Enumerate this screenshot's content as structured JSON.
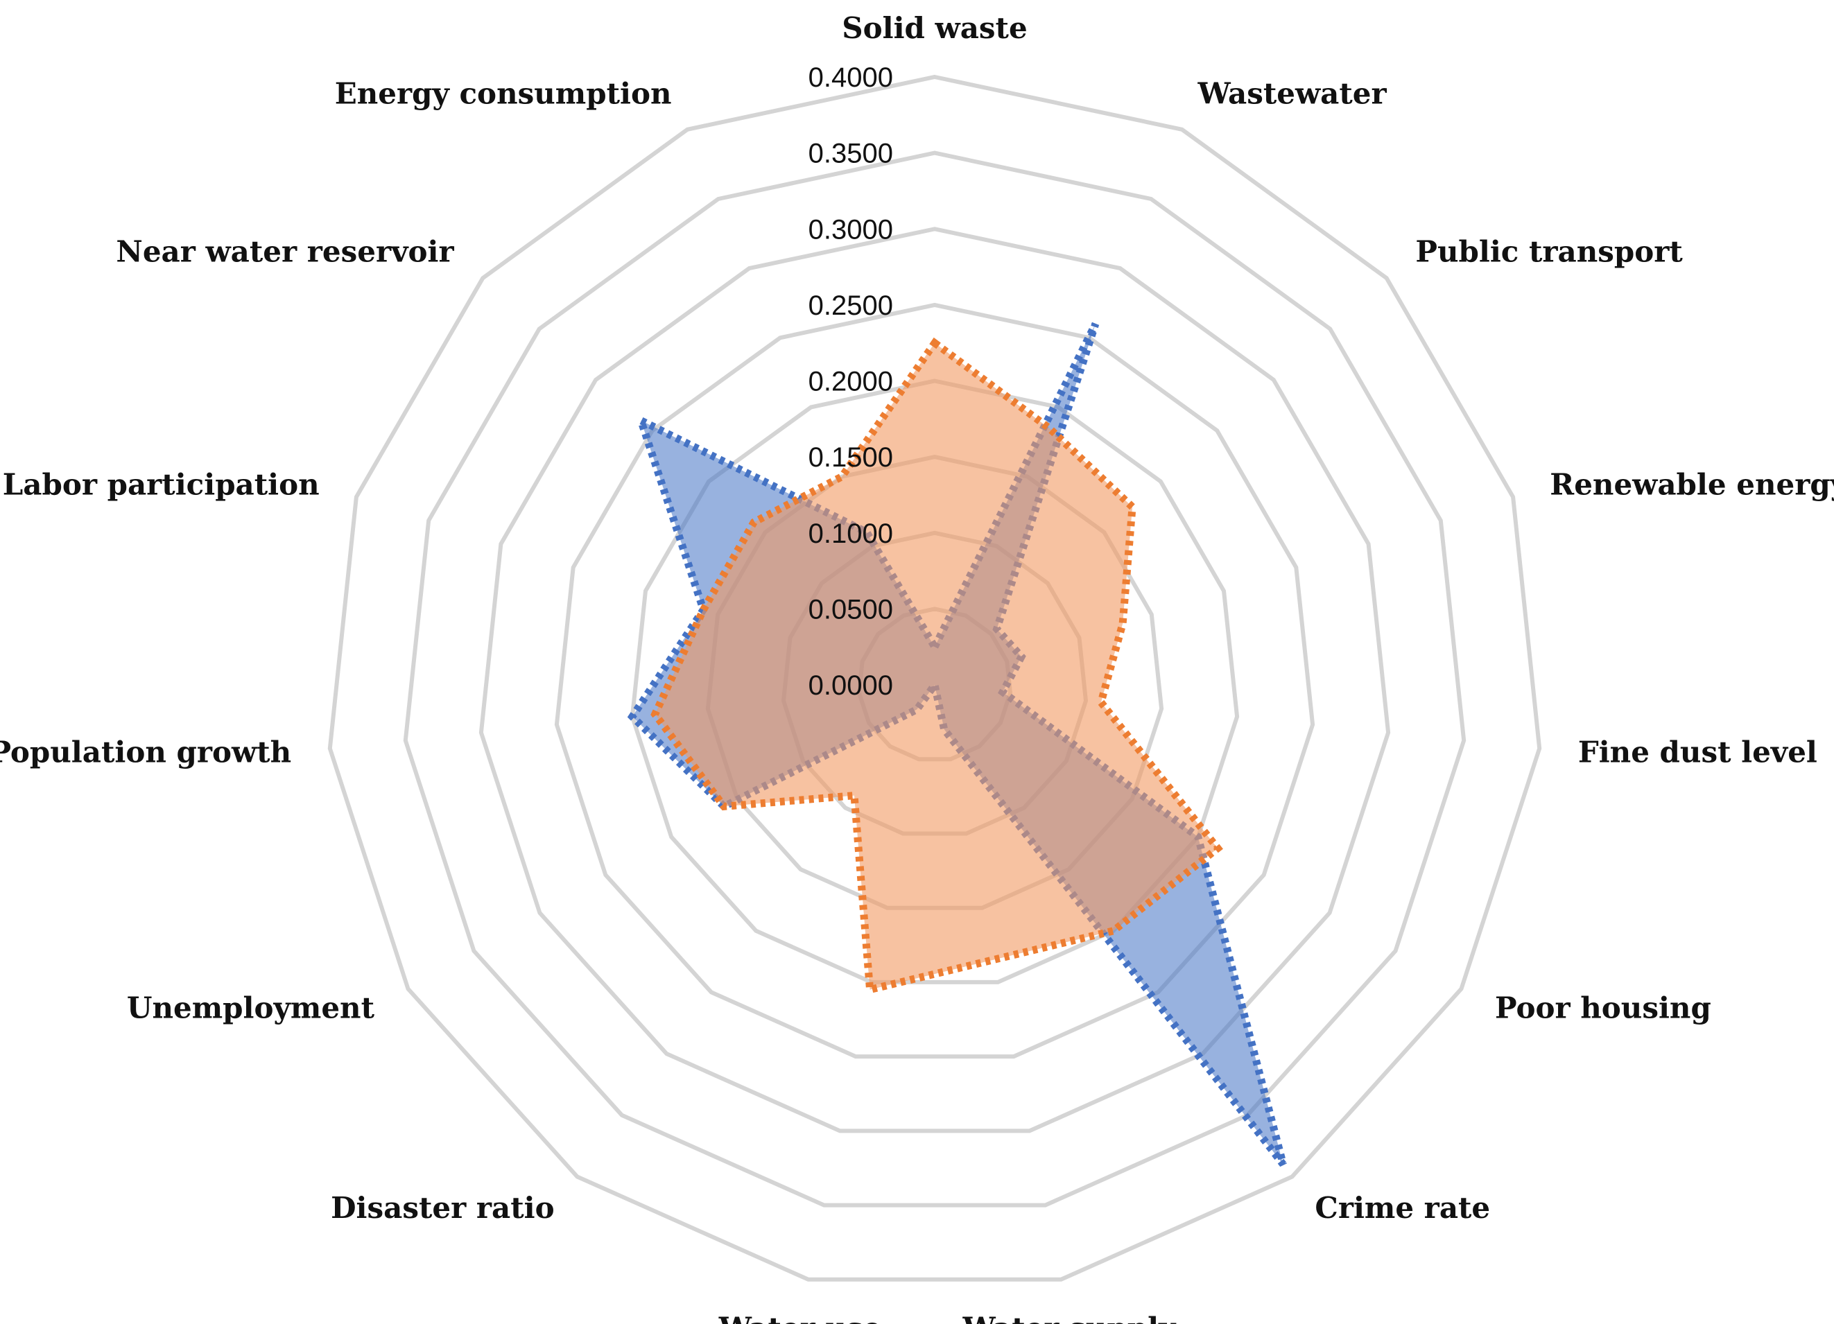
{
  "chart_data": {
    "type": "radar",
    "title": "",
    "categories": [
      "Solid waste",
      "Wastewater",
      "Public transport",
      "Renewable energy",
      "Fine dust level",
      "Poor housing",
      "Crime rate",
      "Water supply",
      "Water use",
      "Disaster ratio",
      "Unemployment",
      "Population growth",
      "Labor participation",
      "Near water reservoir",
      "Energy consumption"
    ],
    "rlim": [
      0,
      0.4
    ],
    "ticks": [
      "0.0000",
      "0.0500",
      "0.1000",
      "0.1500",
      "0.2000",
      "0.2500",
      "0.3000",
      "0.3500",
      "0.4000"
    ],
    "grid": true,
    "legend": "none",
    "series": [
      {
        "values": [
          0.025,
          0.26,
          0.055,
          0.06,
          0.045,
          0.2,
          0.39,
          0.03,
          0.0,
          0.02,
          0.16,
          0.2,
          0.16,
          0.26,
          0.11
        ],
        "color": "#4472C4",
        "fill": "rgba(68,114,196,0.55)"
      },
      {
        "values": [
          0.225,
          0.185,
          0.175,
          0.13,
          0.11,
          0.215,
          0.2,
          0.185,
          0.205,
          0.09,
          0.16,
          0.185,
          0.16,
          0.16,
          0.15
        ],
        "color": "#ED7D31",
        "fill": "rgba(241,153,99,0.6)"
      }
    ]
  }
}
